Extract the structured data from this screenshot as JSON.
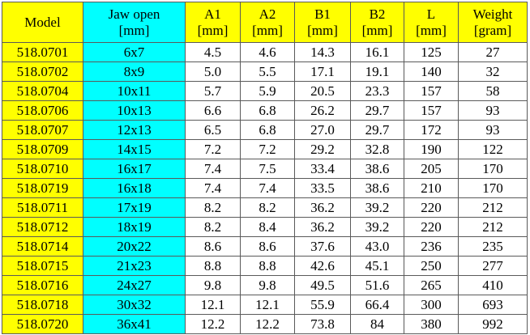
{
  "table": {
    "header": [
      [
        "Model"
      ],
      [
        "Jaw open",
        "[mm]"
      ],
      [
        "A1",
        "[mm]"
      ],
      [
        "A2",
        "[mm]"
      ],
      [
        "B1",
        "[mm]"
      ],
      [
        "B2",
        "[mm]"
      ],
      [
        "L",
        "[mm]"
      ],
      [
        "Weight",
        "[gram]"
      ]
    ],
    "rows": [
      [
        "518.0701",
        "6x7",
        "4.5",
        "4.6",
        "14.3",
        "16.1",
        "125",
        "27"
      ],
      [
        "518.0702",
        "8x9",
        "5.0",
        "5.5",
        "17.1",
        "19.1",
        "140",
        "32"
      ],
      [
        "518.0704",
        "10x11",
        "5.7",
        "5.9",
        "20.5",
        "23.3",
        "157",
        "58"
      ],
      [
        "518.0706",
        "10x13",
        "6.6",
        "6.8",
        "26.2",
        "29.7",
        "157",
        "93"
      ],
      [
        "518.0707",
        "12x13",
        "6.5",
        "6.8",
        "27.0",
        "29.7",
        "172",
        "93"
      ],
      [
        "518.0709",
        "14x15",
        "7.2",
        "7.2",
        "29.2",
        "32.8",
        "190",
        "122"
      ],
      [
        "518.0710",
        "16x17",
        "7.4",
        "7.5",
        "33.4",
        "38.6",
        "205",
        "170"
      ],
      [
        "518.0719",
        "16x18",
        "7.4",
        "7.4",
        "33.5",
        "38.6",
        "210",
        "170"
      ],
      [
        "518.0711",
        "17x19",
        "8.2",
        "8.2",
        "36.2",
        "39.2",
        "220",
        "212"
      ],
      [
        "518.0712",
        "18x19",
        "8.2",
        "8.4",
        "36.2",
        "39.2",
        "220",
        "212"
      ],
      [
        "518.0714",
        "20x22",
        "8.6",
        "8.6",
        "37.6",
        "43.0",
        "236",
        "235"
      ],
      [
        "518.0715",
        "21x23",
        "8.8",
        "8.8",
        "42.6",
        "45.1",
        "250",
        "277"
      ],
      [
        "518.0716",
        "24x27",
        "9.8",
        "9.8",
        "49.5",
        "51.6",
        "265",
        "410"
      ],
      [
        "518.0718",
        "30x32",
        "12.1",
        "12.1",
        "55.9",
        "66.4",
        "300",
        "693"
      ],
      [
        "518.0720",
        "36x41",
        "12.2",
        "12.2",
        "73.8",
        "84",
        "380",
        "992"
      ]
    ]
  }
}
